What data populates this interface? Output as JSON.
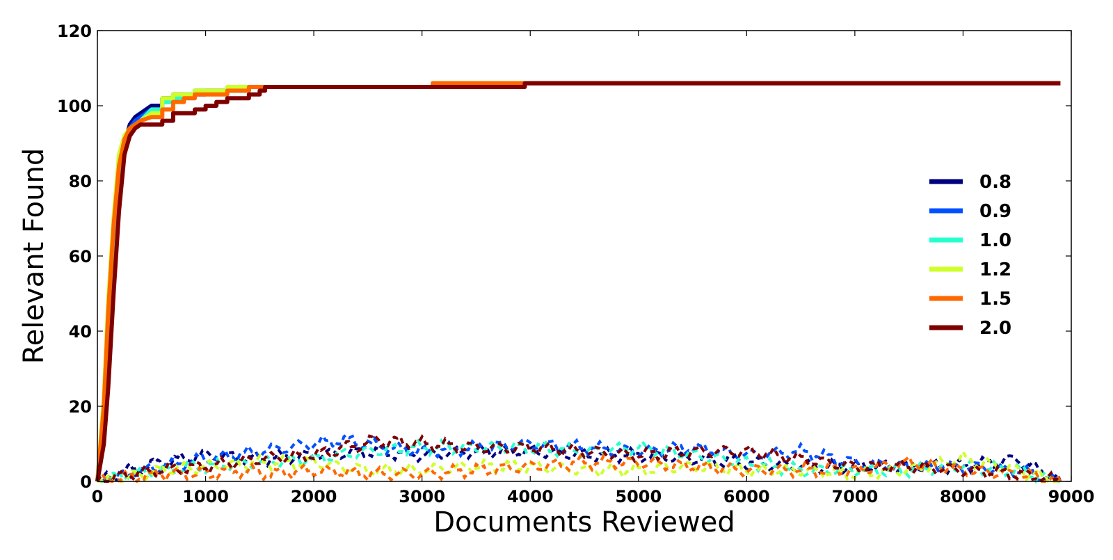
{
  "chart_data": {
    "type": "line",
    "title": "",
    "xlabel": "Documents Reviewed",
    "ylabel": "Relevant Found",
    "xlim": [
      0,
      9000
    ],
    "ylim": [
      0,
      120
    ],
    "x_ticks": [
      0,
      1000,
      2000,
      3000,
      4000,
      5000,
      6000,
      7000,
      8000,
      9000
    ],
    "y_ticks": [
      0,
      20,
      40,
      60,
      80,
      100,
      120
    ],
    "x_tick_labels": [
      "0",
      "1000",
      "2000",
      "3000",
      "4000",
      "5000",
      "6000",
      "7000",
      "8000",
      "9000"
    ],
    "y_tick_labels": [
      "0",
      "20",
      "40",
      "60",
      "80",
      "100",
      "120"
    ],
    "grid": false,
    "legend_position": "center-right",
    "series": [
      {
        "name": "0.8",
        "color": "#00007f",
        "x": [
          0,
          60,
          100,
          150,
          200,
          250,
          300,
          350,
          400,
          500,
          600,
          700,
          800,
          900,
          1000,
          1200,
          1400,
          1550,
          3000,
          3100,
          3900,
          3950,
          8900
        ],
        "y": [
          0,
          15,
          35,
          60,
          80,
          90,
          95,
          97,
          98,
          100,
          102,
          103,
          103,
          104,
          104,
          104,
          105,
          105,
          105,
          106,
          106,
          106,
          106
        ],
        "noise": [
          [
            0,
            0
          ],
          [
            300,
            3
          ],
          [
            600,
            5
          ],
          [
            1000,
            7
          ],
          [
            1500,
            6
          ],
          [
            2000,
            7
          ],
          [
            2500,
            8
          ],
          [
            3000,
            7
          ],
          [
            3500,
            8
          ],
          [
            4000,
            8
          ],
          [
            4500,
            7
          ],
          [
            5000,
            7
          ],
          [
            5500,
            6
          ],
          [
            6000,
            5
          ],
          [
            6500,
            4
          ],
          [
            7000,
            4
          ],
          [
            7500,
            4
          ],
          [
            8000,
            4
          ],
          [
            8500,
            6
          ],
          [
            8900,
            0
          ]
        ]
      },
      {
        "name": "0.9",
        "color": "#0050ff",
        "x": [
          0,
          60,
          100,
          150,
          200,
          250,
          300,
          350,
          400,
          500,
          600,
          700,
          800,
          900,
          1000,
          1200,
          1400,
          1550,
          3000,
          3100,
          3900,
          3950,
          8900
        ],
        "y": [
          0,
          12,
          30,
          55,
          78,
          89,
          94,
          96,
          97,
          99,
          101,
          102,
          103,
          103,
          104,
          104,
          105,
          105,
          105,
          106,
          106,
          106,
          106
        ],
        "noise": [
          [
            0,
            0
          ],
          [
            300,
            2
          ],
          [
            600,
            4
          ],
          [
            1000,
            6
          ],
          [
            1500,
            8
          ],
          [
            2000,
            10
          ],
          [
            2300,
            11
          ],
          [
            2700,
            9
          ],
          [
            3000,
            8
          ],
          [
            3500,
            9
          ],
          [
            4000,
            10
          ],
          [
            4500,
            9
          ],
          [
            5000,
            8
          ],
          [
            5500,
            9
          ],
          [
            6000,
            7
          ],
          [
            6500,
            8
          ],
          [
            7000,
            5
          ],
          [
            7500,
            4
          ],
          [
            8000,
            4
          ],
          [
            8500,
            3
          ],
          [
            8900,
            0
          ]
        ]
      },
      {
        "name": "1.0",
        "color": "#29ffce",
        "x": [
          0,
          60,
          100,
          150,
          200,
          250,
          300,
          350,
          400,
          500,
          600,
          700,
          800,
          900,
          1000,
          1200,
          1400,
          1550,
          3000,
          3100,
          3900,
          3950,
          8900
        ],
        "y": [
          0,
          10,
          28,
          52,
          76,
          88,
          93,
          95,
          96,
          99,
          101,
          102,
          103,
          104,
          104,
          104,
          105,
          105,
          105,
          106,
          106,
          106,
          106
        ],
        "noise": [
          [
            0,
            0
          ],
          [
            300,
            2
          ],
          [
            600,
            3
          ],
          [
            1000,
            4
          ],
          [
            1500,
            5
          ],
          [
            2000,
            6
          ],
          [
            2500,
            8
          ],
          [
            3000,
            9
          ],
          [
            3500,
            9
          ],
          [
            4000,
            9
          ],
          [
            4500,
            8
          ],
          [
            5000,
            9
          ],
          [
            5500,
            7
          ],
          [
            6000,
            5
          ],
          [
            6500,
            3
          ],
          [
            7000,
            3
          ],
          [
            7500,
            3
          ],
          [
            8000,
            4
          ],
          [
            8500,
            3
          ],
          [
            8900,
            0
          ]
        ]
      },
      {
        "name": "1.2",
        "color": "#ceff29",
        "x": [
          0,
          60,
          100,
          150,
          200,
          250,
          300,
          350,
          400,
          500,
          600,
          700,
          800,
          900,
          1000,
          1200,
          1400,
          1550,
          3000,
          3100,
          3900,
          3950,
          8900
        ],
        "y": [
          0,
          22,
          48,
          70,
          87,
          92,
          94,
          95,
          96,
          98,
          102,
          103,
          103,
          104,
          104,
          105,
          105,
          105,
          105,
          106,
          106,
          106,
          106
        ],
        "noise": [
          [
            0,
            0
          ],
          [
            300,
            1
          ],
          [
            600,
            3
          ],
          [
            1000,
            4
          ],
          [
            1500,
            5
          ],
          [
            2000,
            5
          ],
          [
            2500,
            3
          ],
          [
            3000,
            3
          ],
          [
            3500,
            4
          ],
          [
            4000,
            4
          ],
          [
            4500,
            3
          ],
          [
            5000,
            3
          ],
          [
            5500,
            4
          ],
          [
            6000,
            3
          ],
          [
            6500,
            3
          ],
          [
            7000,
            2
          ],
          [
            7500,
            3
          ],
          [
            8000,
            6
          ],
          [
            8500,
            3
          ],
          [
            8900,
            0
          ]
        ]
      },
      {
        "name": "1.5",
        "color": "#ff6800",
        "x": [
          0,
          60,
          100,
          150,
          200,
          250,
          300,
          350,
          400,
          500,
          600,
          700,
          800,
          900,
          1000,
          1200,
          1400,
          1550,
          3000,
          3100,
          3900,
          3950,
          8900
        ],
        "y": [
          0,
          20,
          45,
          68,
          84,
          91,
          94,
          95,
          96,
          97,
          99,
          101,
          102,
          103,
          103,
          104,
          105,
          105,
          105,
          106,
          106,
          106,
          106
        ],
        "noise": [
          [
            0,
            0
          ],
          [
            300,
            1
          ],
          [
            600,
            2
          ],
          [
            1000,
            2
          ],
          [
            1300,
            3
          ],
          [
            1600,
            2
          ],
          [
            2000,
            3
          ],
          [
            2500,
            2
          ],
          [
            3000,
            2
          ],
          [
            3500,
            3
          ],
          [
            4000,
            4
          ],
          [
            4500,
            5
          ],
          [
            5000,
            5
          ],
          [
            5500,
            4
          ],
          [
            6000,
            3
          ],
          [
            6500,
            3
          ],
          [
            7000,
            3
          ],
          [
            7500,
            5
          ],
          [
            8000,
            3
          ],
          [
            8500,
            2
          ],
          [
            8900,
            0
          ]
        ]
      },
      {
        "name": "2.0",
        "color": "#7f0000",
        "x": [
          0,
          60,
          100,
          150,
          200,
          250,
          300,
          350,
          400,
          500,
          600,
          700,
          800,
          900,
          1000,
          1100,
          1200,
          1400,
          1500,
          1550,
          3000,
          3100,
          3900,
          3950,
          8900
        ],
        "y": [
          0,
          10,
          25,
          50,
          72,
          87,
          92,
          94,
          95,
          95,
          96,
          98,
          98,
          99,
          100,
          101,
          102,
          103,
          104,
          105,
          105,
          105,
          105,
          106,
          106
        ],
        "noise": [
          [
            0,
            0
          ],
          [
            300,
            2
          ],
          [
            600,
            3
          ],
          [
            1000,
            4
          ],
          [
            1500,
            6
          ],
          [
            2000,
            7
          ],
          [
            2300,
            9
          ],
          [
            2600,
            11
          ],
          [
            3000,
            10
          ],
          [
            3500,
            9
          ],
          [
            4000,
            9
          ],
          [
            4500,
            8
          ],
          [
            5000,
            7
          ],
          [
            5500,
            8
          ],
          [
            6000,
            8
          ],
          [
            6500,
            6
          ],
          [
            7000,
            4
          ],
          [
            7500,
            4
          ],
          [
            8000,
            3
          ],
          [
            8500,
            2
          ],
          [
            8900,
            0
          ]
        ]
      }
    ]
  }
}
